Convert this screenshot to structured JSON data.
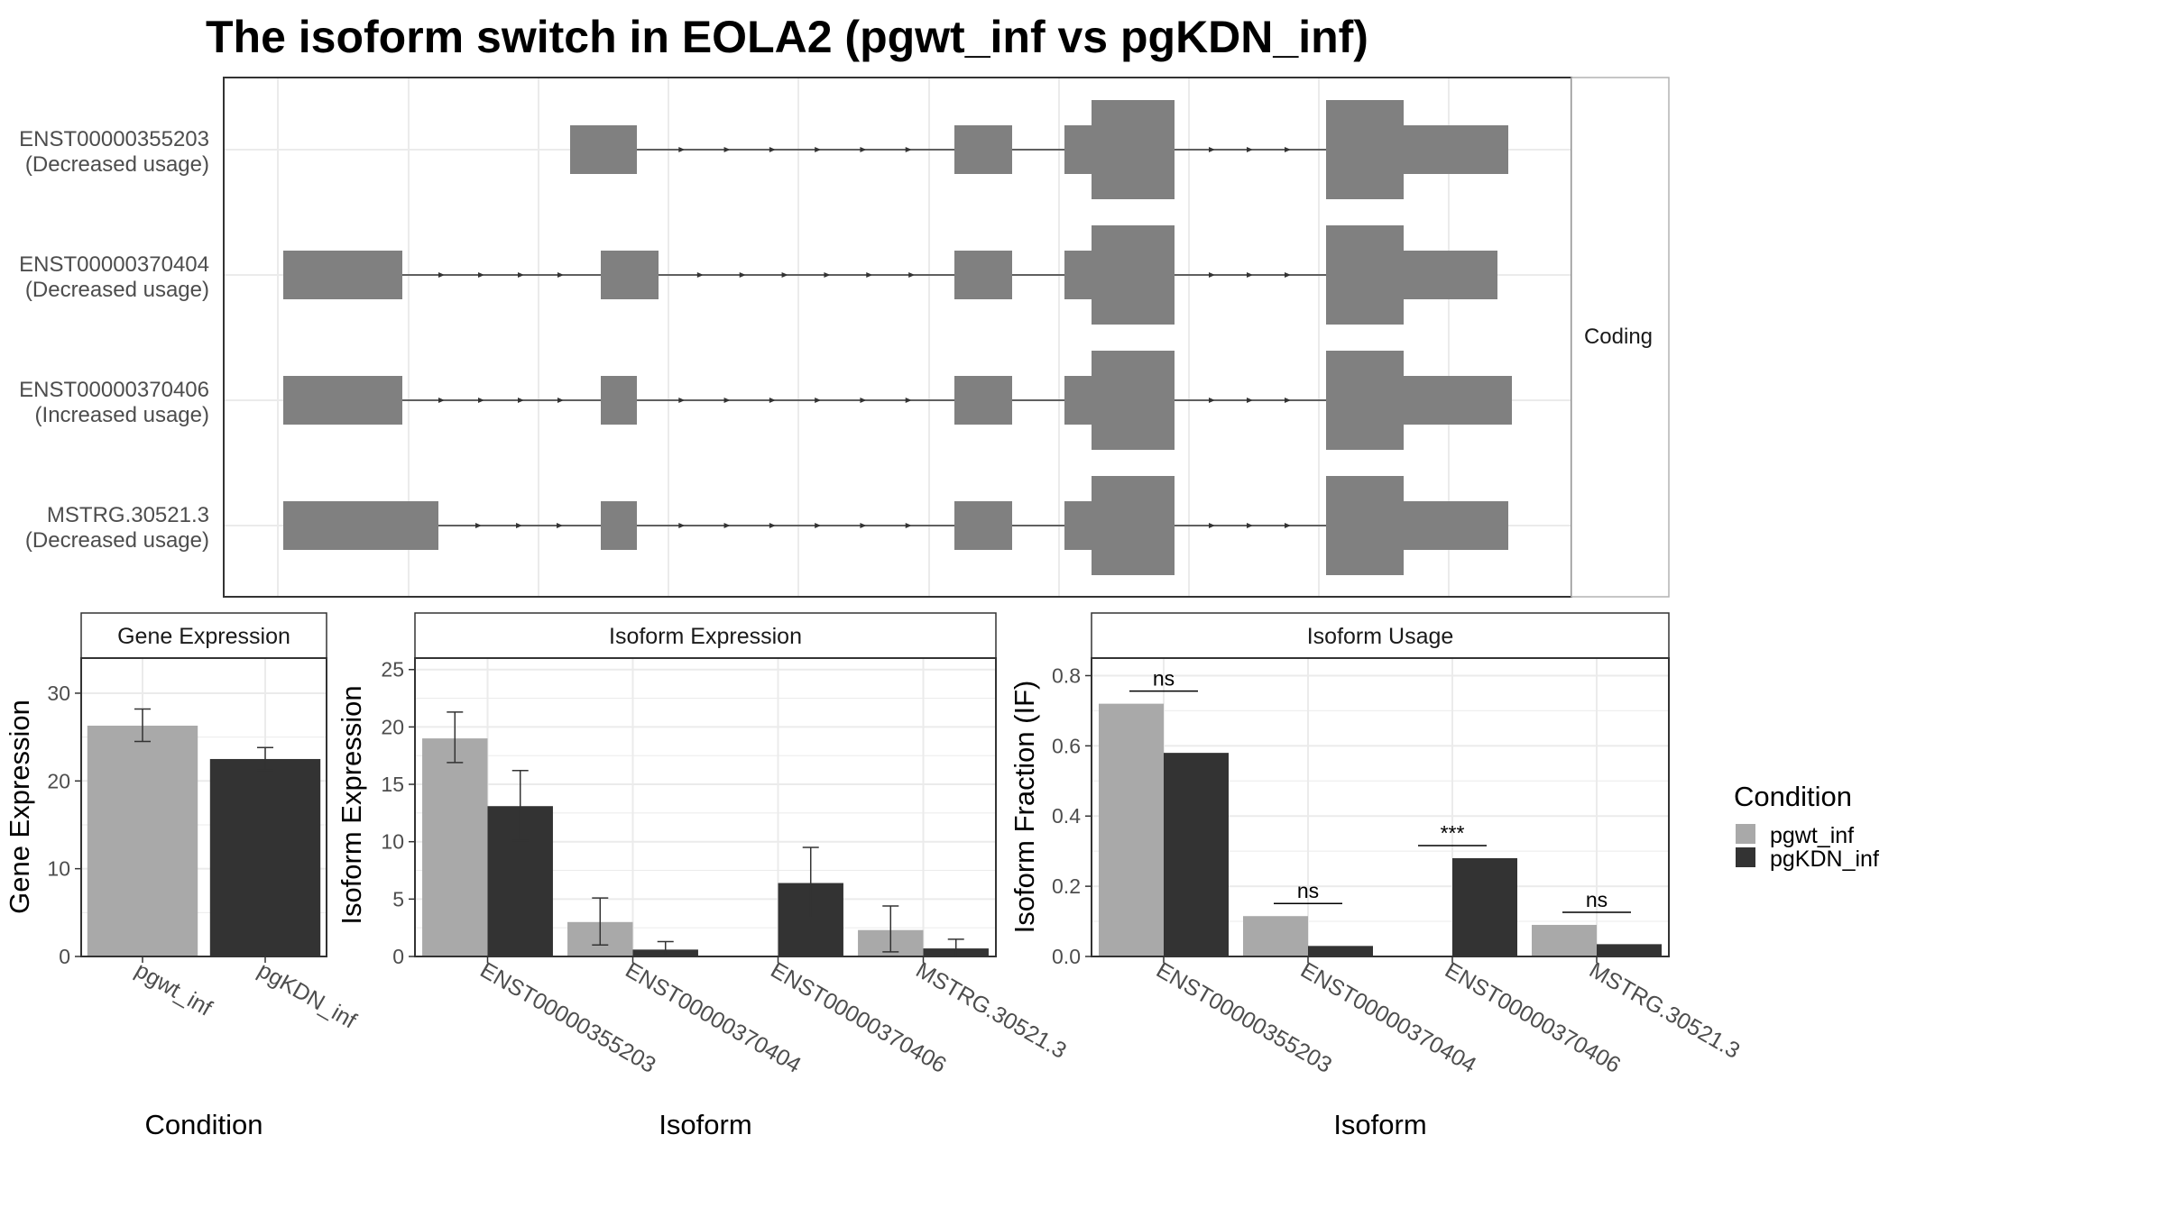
{
  "title": "The isoform switch in EOLA2 (pgwt_inf vs pgKDN_inf)",
  "colors": {
    "pgwt_inf": "#a9a9a9",
    "pgKDN_inf": "#333333",
    "exon": "#808080",
    "grid": "#ebebeb",
    "panel_border": "#333333",
    "strip_border": "#b3b3b3"
  },
  "structure": {
    "facet_label": "Coding",
    "transcripts": [
      {
        "id": "ENST00000355203",
        "usage": "(Decreased usage)"
      },
      {
        "id": "ENST00000370404",
        "usage": "(Decreased usage)"
      },
      {
        "id": "ENST00000370406",
        "usage": "(Increased usage)"
      },
      {
        "id": "MSTRG.30521.3",
        "usage": "(Decreased usage)"
      }
    ]
  },
  "chart_data": [
    {
      "type": "bar",
      "title": "Gene Expression",
      "xlabel": "Condition",
      "ylabel": "Gene Expression",
      "ylim": [
        0,
        34
      ],
      "yticks": [
        "0",
        "10",
        "20",
        "30"
      ],
      "categories": [
        "pgwt_inf",
        "pgKDN_inf"
      ],
      "values": [
        26.3,
        22.5
      ],
      "error_low": [
        24.5,
        21.2
      ],
      "error_high": [
        28.2,
        23.8
      ]
    },
    {
      "type": "bar",
      "title": "Isoform Expression",
      "xlabel": "Isoform",
      "ylabel": "Isoform Expression",
      "ylim": [
        0,
        26
      ],
      "yticks": [
        "0",
        "5",
        "10",
        "15",
        "20",
        "25"
      ],
      "categories": [
        "ENST00000355203",
        "ENST00000370404",
        "ENST00000370406",
        "MSTRG.30521.3"
      ],
      "series": [
        {
          "name": "pgwt_inf",
          "values": [
            19.0,
            3.0,
            0.0,
            2.3
          ],
          "error_low": [
            16.9,
            1.0,
            0.0,
            0.4
          ],
          "error_high": [
            21.3,
            5.1,
            0.0,
            4.4
          ]
        },
        {
          "name": "pgKDN_inf",
          "values": [
            13.1,
            0.6,
            6.4,
            0.7
          ],
          "error_low": [
            10.1,
            0.1,
            3.4,
            0.0
          ],
          "error_high": [
            16.2,
            1.3,
            9.5,
            1.5
          ]
        }
      ]
    },
    {
      "type": "bar",
      "title": "Isoform Usage",
      "xlabel": "Isoform",
      "ylabel": "Isoform Fraction (IF)",
      "ylim": [
        0,
        0.85
      ],
      "yticks": [
        "0.0",
        "0.2",
        "0.4",
        "0.6",
        "0.8"
      ],
      "categories": [
        "ENST00000355203",
        "ENST00000370404",
        "ENST00000370406",
        "MSTRG.30521.3"
      ],
      "series": [
        {
          "name": "pgwt_inf",
          "values": [
            0.72,
            0.115,
            0.0,
            0.09
          ]
        },
        {
          "name": "pgKDN_inf",
          "values": [
            0.58,
            0.03,
            0.28,
            0.035
          ]
        }
      ],
      "significance": [
        "ns",
        "ns",
        "***",
        "ns"
      ]
    }
  ],
  "legend": {
    "title": "Condition",
    "entries": [
      "pgwt_inf",
      "pgKDN_inf"
    ]
  }
}
